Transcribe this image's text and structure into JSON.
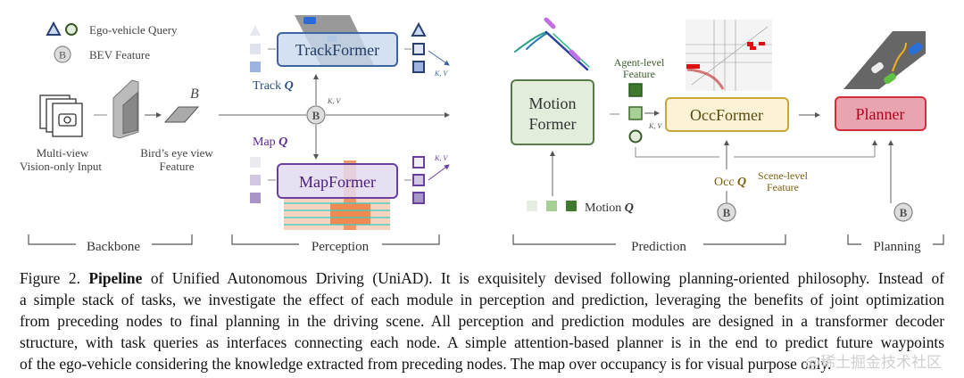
{
  "legend": {
    "ego_query": "Ego-vehicle Query",
    "bev_feature": "BEV Feature",
    "b_symbol": "B"
  },
  "backbone": {
    "input_line1": "Multi-view",
    "input_line2": "Vision-only Input",
    "bev_symbol": "B",
    "bev_line1": "Bird’s eye view",
    "bev_line2": "Feature"
  },
  "perception": {
    "kv": "K, V",
    "track_former": "TrackFormer",
    "map_former": "MapFormer",
    "track_q": "Track ",
    "map_q": "Map ",
    "q": "Q",
    "kv_track": "K, V",
    "kv_map": "K, V"
  },
  "prediction": {
    "motion_former_1": "Motion",
    "motion_former_2": "Former",
    "agent_feature_1": "Agent-level",
    "agent_feature_2": "Feature",
    "kv": "K, V",
    "occ_former": "OccFormer",
    "occ_q": "Occ ",
    "q": "Q",
    "scene_feature_1": "Scene-level",
    "scene_feature_2": "Feature",
    "motion_q": "Motion "
  },
  "planning": {
    "planner": "Planner"
  },
  "stages": {
    "backbone": "Backbone",
    "perception": "Perception",
    "prediction": "Prediction",
    "planning": "Planning"
  },
  "colors": {
    "track": "#3e64a0",
    "map": "#6a3fa0",
    "motion": "#4f7a3e",
    "occ": "#c8a838",
    "planner": "#d0303c"
  },
  "caption": {
    "label": "Figure 2.",
    "bold": "Pipeline",
    "line1_rest": "of Unified Autonomous Driving (UniAD). It is exquisitely devised following planning-oriented philosophy. Instead of",
    "line2": "a simple stack of tasks, we investigate the effect of each module in perception and prediction, leveraging the benefits of joint optimization",
    "line3": "from preceding nodes to final planning in the driving scene. All perception and prediction modules are designed in a transformer decoder",
    "line4": "structure, with task queries as interfaces connecting each node. A simple attention-based planner is in the end to predict future waypoints",
    "line5": "of the ego-vehicle considering the knowledge extracted from preceding nodes. The map over occupancy is for visual purpose only."
  },
  "watermark": "@稀土掘金技术社区"
}
